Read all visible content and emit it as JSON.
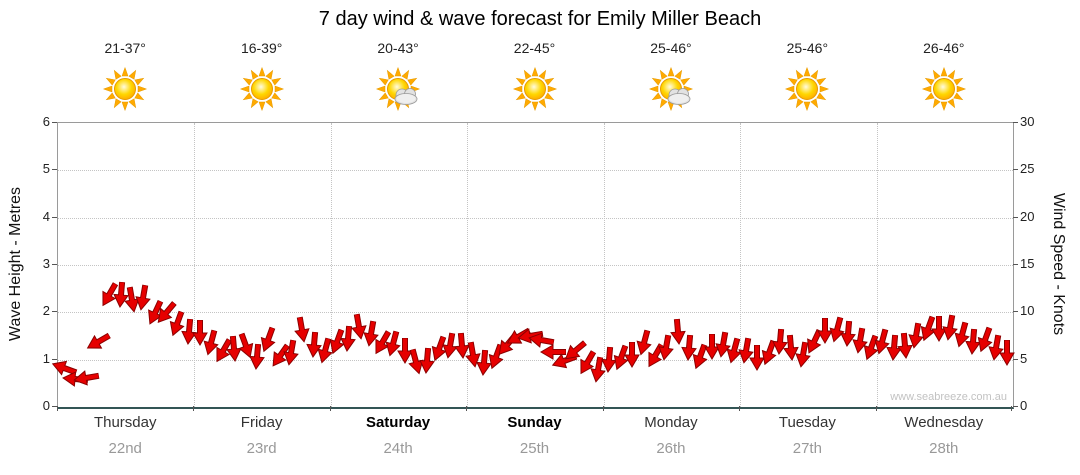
{
  "title": "7 day wind & wave forecast for Emily Miller Beach",
  "watermark": "www.seabreeze.com.au",
  "colors": {
    "arrow_fill": "#e60000",
    "arrow_stroke": "#8b0000",
    "grid": "#c4c4c4",
    "sun_core": "#ffcc00",
    "sun_edge": "#e69a00",
    "sun_ray": "#ffaa00",
    "cloud_fill": "#e2e2e2",
    "cloud_stroke": "#9a9a9a"
  },
  "days": [
    {
      "name": "Thursday",
      "date": "22nd",
      "temp": "21-37°",
      "icon": "sun",
      "emphasis": false
    },
    {
      "name": "Friday",
      "date": "23rd",
      "temp": "16-39°",
      "icon": "sun",
      "emphasis": false
    },
    {
      "name": "Saturday",
      "date": "24th",
      "temp": "20-43°",
      "icon": "sun-cloud",
      "emphasis": true
    },
    {
      "name": "Sunday",
      "date": "25th",
      "temp": "22-45°",
      "icon": "sun",
      "emphasis": true
    },
    {
      "name": "Monday",
      "date": "26th",
      "temp": "25-46°",
      "icon": "sun-cloud",
      "emphasis": false
    },
    {
      "name": "Tuesday",
      "date": "27th",
      "temp": "25-46°",
      "icon": "sun",
      "emphasis": false
    },
    {
      "name": "Wednesday",
      "date": "28th",
      "temp": "26-46°",
      "icon": "sun",
      "emphasis": false
    }
  ],
  "chart_data": {
    "type": "scatter",
    "subtype": "wind-direction-arrows",
    "title": "7 day wind & wave forecast for Emily Miller Beach",
    "left_axis": {
      "label": "Wave Height - Metres",
      "min": 0,
      "max": 6,
      "ticks": [
        0,
        1,
        2,
        3,
        4,
        5,
        6
      ]
    },
    "right_axis": {
      "label": "Wind Speed - Knots",
      "min": 0,
      "max": 30,
      "ticks": [
        0,
        5,
        10,
        15,
        20,
        25,
        30
      ]
    },
    "x_axis": {
      "categories": [
        "Thursday 22nd",
        "Friday 23rd",
        "Saturday 24th",
        "Sunday 25th",
        "Monday 26th",
        "Tuesday 27th",
        "Wednesday 28th"
      ],
      "days": 7
    },
    "grid": true,
    "legend": "none",
    "series": [
      {
        "name": "Wind speed & direction",
        "unit": "knots",
        "points_per_day": 12,
        "knots": [
          3.8,
          3.0,
          3.4,
          6.5,
          11.8,
          12.2,
          11.0,
          11.5,
          10.2,
          9.6,
          8.8,
          8.2,
          7.5,
          6.8,
          6.2,
          5.8,
          6.4,
          5.6,
          6.8,
          5.4,
          6.0,
          7.8,
          6.6,
          6.2,
          6.6,
          7.2,
          8.8,
          7.4,
          6.8,
          7.0,
          5.6,
          4.8,
          5.2,
          5.8,
          6.4,
          6.8,
          5.2,
          4.6,
          5.6,
          6.2,
          7.4,
          7.8,
          6.8,
          5.8,
          5.2,
          5.6,
          4.6,
          4.2,
          4.6,
          5.2,
          5.8,
          6.4,
          5.4,
          6.6,
          7.6,
          6.2,
          5.6,
          6.0,
          6.6,
          6.2,
          5.6,
          5.2,
          6.0,
          6.6,
          6.2,
          5.8,
          6.6,
          8.0,
          8.4,
          7.4,
          7.0,
          6.6,
          6.6,
          6.2,
          6.8,
          7.2,
          8.2,
          8.6,
          8.0,
          7.6,
          7.2,
          6.8,
          6.2,
          6.0
        ],
        "dir_deg": [
          200,
          185,
          170,
          150,
          120,
          95,
          80,
          100,
          115,
          130,
          110,
          95,
          90,
          105,
          120,
          85,
          70,
          95,
          110,
          125,
          100,
          80,
          95,
          105,
          110,
          95,
          80,
          100,
          120,
          105,
          90,
          75,
          95,
          110,
          100,
          85,
          80,
          95,
          110,
          130,
          150,
          170,
          190,
          180,
          160,
          140,
          120,
          100,
          95,
          110,
          90,
          105,
          120,
          100,
          85,
          95,
          110,
          90,
          100,
          105,
          100,
          90,
          110,
          95,
          85,
          100,
          115,
          90,
          105,
          95,
          100,
          110,
          105,
          95,
          85,
          100,
          110,
          90,
          100,
          105,
          95,
          110,
          100,
          90
        ]
      }
    ]
  }
}
